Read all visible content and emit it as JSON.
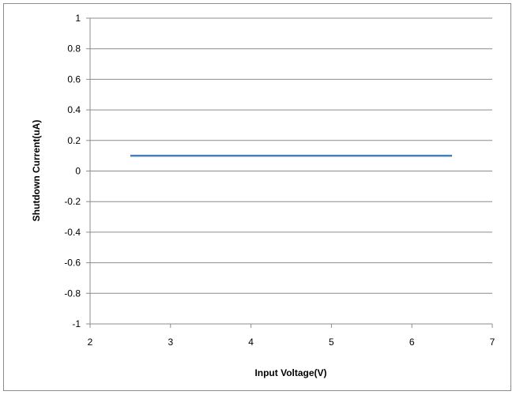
{
  "chart_data": {
    "type": "line",
    "title": "",
    "xlabel": "Input Voltage(V)",
    "ylabel": "Shutdown Current(uA)",
    "xlim": [
      2,
      7
    ],
    "ylim": [
      -1,
      1
    ],
    "x_ticks": [
      2,
      3,
      4,
      5,
      6,
      7
    ],
    "y_ticks": [
      1,
      0.8,
      0.6,
      0.4,
      0.2,
      0,
      -0.2,
      -0.4,
      -0.6,
      -0.8,
      -1
    ],
    "grid": "horizontal",
    "legend": "none",
    "series": [
      {
        "color": "#4a7ebb",
        "x": [
          2.5,
          3,
          3.5,
          4,
          4.5,
          5,
          5.5,
          6,
          6.5
        ],
        "y": [
          0.1,
          0.1,
          0.1,
          0.1,
          0.1,
          0.1,
          0.1,
          0.1,
          0.1
        ]
      }
    ]
  },
  "colors": {
    "grid": "#8c8c8c",
    "axis": "#8c8c8c",
    "line": "#4a7ebb"
  }
}
